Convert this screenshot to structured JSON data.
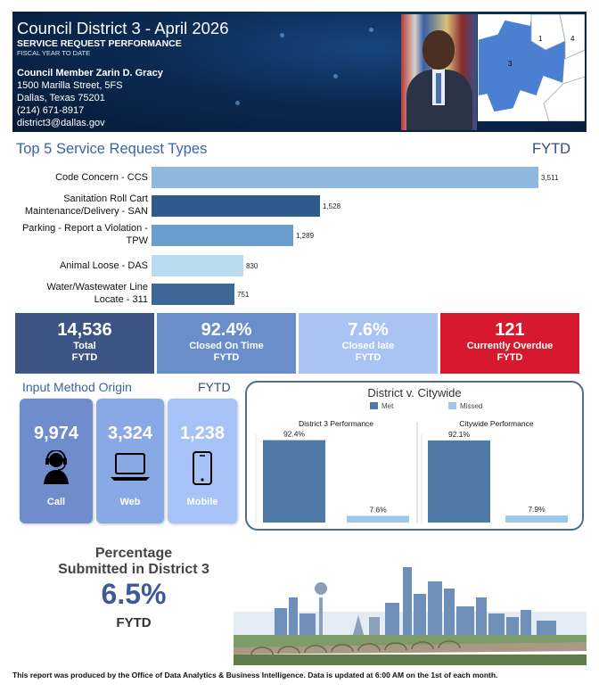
{
  "header": {
    "title": "Council District 3 - April 2026",
    "subtitle": "SERVICE REQUEST PERFORMANCE",
    "fiscal": "FISCAL YEAR TO DATE",
    "member": "Council Member Zarin D. Gracy",
    "street": "1500 Marilla Street, 5FS",
    "city": "Dallas, Texas 75201",
    "phone": "(214) 671-8917",
    "email": "district3@dallas.gov",
    "map_labels": [
      "1",
      "3",
      "4"
    ]
  },
  "top5": {
    "title": "Top 5 Service Request Types",
    "period": "FYTD",
    "items": [
      {
        "label_lines": [
          "Code Concern - CCS"
        ],
        "value_text": "3,511"
      },
      {
        "label_lines": [
          "Sanitation Roll Cart",
          "Maintenance/Delivery - SAN"
        ],
        "value_text": "1,528"
      },
      {
        "label_lines": [
          "Parking - Report a Violation -",
          "TPW"
        ],
        "value_text": "1,289"
      },
      {
        "label_lines": [
          "Animal Loose - DAS"
        ],
        "value_text": "830"
      },
      {
        "label_lines": [
          "Water/Wastewater Line",
          "Locate - 311"
        ],
        "value_text": "751"
      }
    ]
  },
  "chart_data": [
    {
      "type": "bar",
      "orientation": "horizontal",
      "title": "Top 5 Service Request Types",
      "categories": [
        "Code Concern - CCS",
        "Sanitation Roll Cart Maintenance/Delivery - SAN",
        "Parking - Report a Violation - TPW",
        "Animal Loose - DAS",
        "Water/Wastewater Line Locate - 311"
      ],
      "values": [
        3511,
        1528,
        1289,
        830,
        751
      ],
      "colors": [
        "#8fb8de",
        "#2e5a8c",
        "#6a9dcc",
        "#b9dcf0",
        "#3d6796"
      ]
    },
    {
      "type": "bar",
      "title": "District 3 Performance",
      "categories": [
        "Met",
        "Missed"
      ],
      "values": [
        92.4,
        7.6
      ],
      "value_labels": [
        "92.4%",
        "7.6%"
      ],
      "ylim": [
        0,
        100
      ]
    },
    {
      "type": "bar",
      "title": "Citywide Performance",
      "categories": [
        "Met",
        "Missed"
      ],
      "values": [
        92.1,
        7.9
      ],
      "value_labels": [
        "92.1%",
        "7.9%"
      ],
      "ylim": [
        0,
        100
      ]
    }
  ],
  "kpis": [
    {
      "value": "14,536",
      "line1": "Total",
      "line2": "FYTD",
      "color": "#3d5584"
    },
    {
      "value": "92.4%",
      "line1": "Closed On Time",
      "line2": "FYTD",
      "color": "#6a8ec9"
    },
    {
      "value": "7.6%",
      "line1": "Closed late",
      "line2": "FYTD",
      "color": "#a9c4f3"
    },
    {
      "value": "121",
      "line1": "Currently Overdue",
      "line2": "FYTD",
      "color": "#d7192f"
    }
  ],
  "input_method": {
    "title": "Input Method Origin",
    "period": "FYTD",
    "cards": [
      {
        "value": "9,974",
        "label": "Call",
        "icon": "operator-headset-icon",
        "color": "#6f8ccc"
      },
      {
        "value": "3,324",
        "label": "Web",
        "icon": "laptop-icon",
        "color": "#89a9e6"
      },
      {
        "value": "1,238",
        "label": "Mobile",
        "icon": "mobile-phone-icon",
        "color": "#a6c2f6"
      }
    ]
  },
  "district_vs_citywide": {
    "title": "District v. Citywide",
    "legend": [
      {
        "name": "Met",
        "color": "#4f79a6"
      },
      {
        "name": "Missed",
        "color": "#9ec7e8"
      }
    ],
    "panels": [
      {
        "title": "District 3 Performance",
        "met_label": "92.4%",
        "missed_label": "7.6%"
      },
      {
        "title": "Citywide Performance",
        "met_label": "92.1%",
        "missed_label": "7.9%"
      }
    ]
  },
  "percentage": {
    "line1": "Percentage",
    "line2": "Submitted in District 3",
    "value": "6.5%",
    "period": "FYTD"
  },
  "footer": "This report was produced by the Office of Data Analytics & Business Intelligence. Data is updated at 6:00 AM on the 1st of each month."
}
